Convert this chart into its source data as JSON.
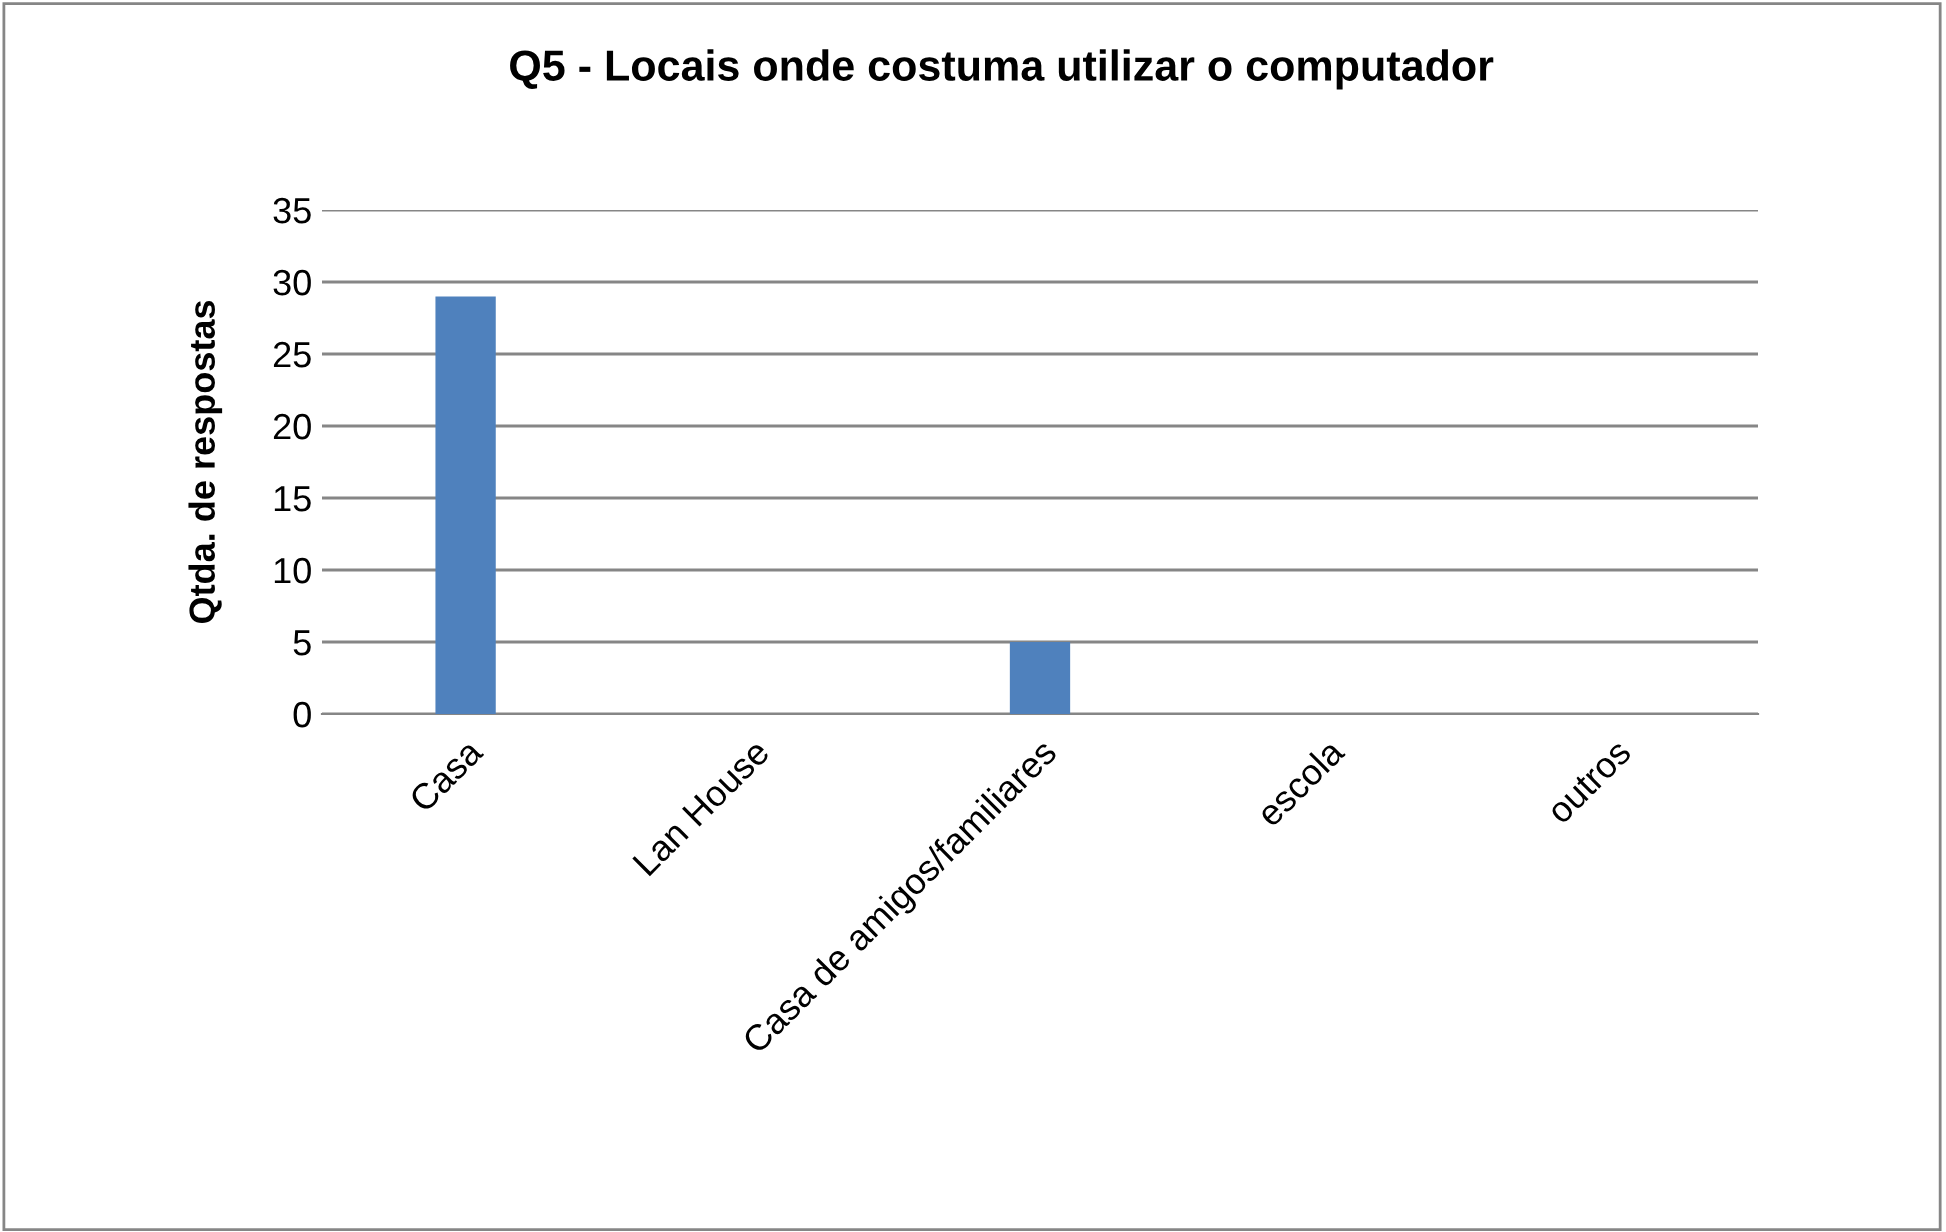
{
  "chart_data": {
    "type": "bar",
    "title": "Q5 - Locais onde costuma utilizar o computador",
    "ylabel": "Qtda. de respostas",
    "categories": [
      "Casa",
      "Lan House",
      "Casa de amigos/familiares",
      "escola",
      "outros"
    ],
    "values": [
      29,
      0,
      5,
      0,
      0
    ],
    "color": "#4f81bd",
    "ylim": [
      0,
      35
    ],
    "yticks": [
      0,
      5,
      10,
      15,
      20,
      25,
      30,
      35
    ],
    "grid": "y",
    "legend": false
  }
}
